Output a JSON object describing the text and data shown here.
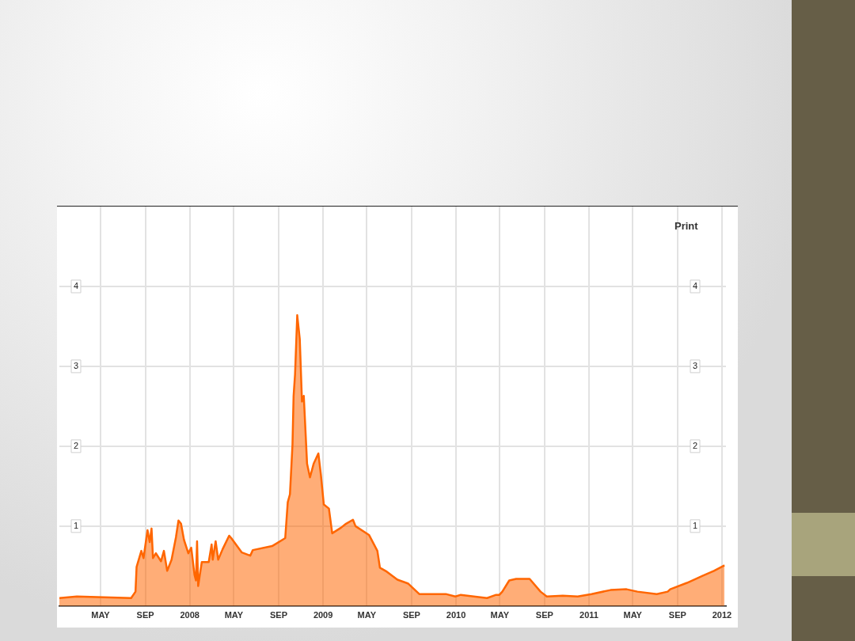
{
  "chart_data": {
    "type": "area",
    "x": [
      "2007-01-08",
      "2007-02-25",
      "2007-07-24",
      "2007-08-05",
      "2007-08-08",
      "2007-08-21",
      "2007-08-27",
      "2007-09-07",
      "2007-09-13",
      "2007-09-18",
      "2007-09-22",
      "2007-09-30",
      "2007-10-14",
      "2007-10-22",
      "2007-10-31",
      "2007-11-12",
      "2007-11-24",
      "2007-12-01",
      "2007-12-08",
      "2007-12-16",
      "2007-12-28",
      "2008-01-05",
      "2008-01-14",
      "2008-01-18",
      "2008-01-21",
      "2008-01-24",
      "2008-02-03",
      "2008-02-22",
      "2008-03-01",
      "2008-03-04",
      "2008-03-12",
      "2008-03-19",
      "2008-03-31",
      "2008-04-18",
      "2008-04-24",
      "2008-05-23",
      "2008-06-15",
      "2008-06-22",
      "2008-08-14",
      "2008-09-19",
      "2008-09-26",
      "2008-10-02",
      "2008-10-09",
      "2008-10-12",
      "2008-10-16",
      "2008-10-22",
      "2008-10-29",
      "2008-11-04",
      "2008-11-09",
      "2008-11-18",
      "2008-11-26",
      "2008-12-06",
      "2008-12-19",
      "2008-12-26",
      "2009-01-03",
      "2009-01-17",
      "2009-01-26",
      "2009-02-19",
      "2009-03-05",
      "2009-03-24",
      "2009-03-31",
      "2009-05-07",
      "2009-05-30",
      "2009-06-06",
      "2009-06-25",
      "2009-07-24",
      "2009-08-23",
      "2009-09-22",
      "2009-10-21",
      "2009-12-04",
      "2009-12-30",
      "2010-01-14",
      "2010-03-27",
      "2010-04-21",
      "2010-04-30",
      "2010-05-08",
      "2010-05-27",
      "2010-06-15",
      "2010-07-22",
      "2010-08-21",
      "2010-09-07",
      "2010-10-21",
      "2010-12-01",
      "2011-01-08",
      "2011-03-01",
      "2011-04-14",
      "2011-05-14",
      "2011-07-06",
      "2011-08-05",
      "2011-08-12",
      "2011-09-27",
      "2011-11-10",
      "2011-12-10",
      "2012-01-08"
    ],
    "series": [
      {
        "color": "#ff6600",
        "values": [
          0.1,
          0.12,
          0.1,
          0.18,
          0.49,
          0.69,
          0.6,
          0.95,
          0.8,
          0.97,
          0.6,
          0.66,
          0.56,
          0.69,
          0.44,
          0.58,
          0.86,
          1.07,
          1.03,
          0.83,
          0.66,
          0.73,
          0.39,
          0.32,
          0.81,
          0.25,
          0.55,
          0.55,
          0.77,
          0.58,
          0.81,
          0.58,
          0.71,
          0.88,
          0.85,
          0.67,
          0.63,
          0.7,
          0.75,
          0.85,
          1.3,
          1.4,
          2.02,
          2.63,
          2.9,
          3.64,
          3.34,
          2.56,
          2.63,
          1.78,
          1.61,
          1.78,
          1.91,
          1.64,
          1.27,
          1.22,
          0.91,
          0.98,
          1.03,
          1.08,
          1.0,
          0.89,
          0.69,
          0.48,
          0.43,
          0.33,
          0.28,
          0.15,
          0.15,
          0.15,
          0.12,
          0.14,
          0.1,
          0.14,
          0.14,
          0.18,
          0.32,
          0.34,
          0.34,
          0.18,
          0.12,
          0.13,
          0.12,
          0.15,
          0.2,
          0.21,
          0.18,
          0.15,
          0.18,
          0.21,
          0.29,
          0.38,
          0.44,
          0.51
        ]
      }
    ],
    "xlim": [
      "2007-01-08",
      "2012-01-12"
    ],
    "xticks": [
      {
        "value": "2007-05",
        "label": "MAY"
      },
      {
        "value": "2007-09",
        "label": "SEP"
      },
      {
        "value": "2008",
        "label": "2008"
      },
      {
        "value": "2008-05",
        "label": "MAY"
      },
      {
        "value": "2008-09",
        "label": "SEP"
      },
      {
        "value": "2009",
        "label": "2009"
      },
      {
        "value": "2009-05",
        "label": "MAY"
      },
      {
        "value": "2009-09",
        "label": "SEP"
      },
      {
        "value": "2010",
        "label": "2010"
      },
      {
        "value": "2010-05",
        "label": "MAY"
      },
      {
        "value": "2010-09",
        "label": "SEP"
      },
      {
        "value": "2011",
        "label": "2011"
      },
      {
        "value": "2011-05",
        "label": "MAY"
      },
      {
        "value": "2011-09",
        "label": "SEP"
      },
      {
        "value": "2012",
        "label": "2012"
      }
    ],
    "ylim": [
      0,
      5
    ],
    "yticks": [
      1,
      2,
      3,
      4
    ],
    "y2lim": [
      0,
      5
    ],
    "y2ticks": [
      1,
      2,
      3,
      4
    ],
    "grid": true,
    "legend": false,
    "marker": "none",
    "line_style": "solid",
    "annotations": [
      "Print"
    ]
  }
}
